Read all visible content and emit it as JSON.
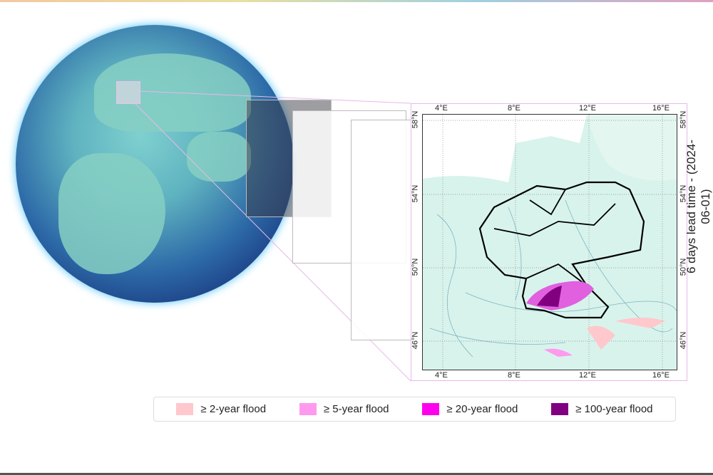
{
  "map": {
    "lon_ticks": [
      "4°E",
      "8°E",
      "12°E",
      "16°E"
    ],
    "lat_ticks": [
      "58°N",
      "54°N",
      "50°N",
      "46°N"
    ],
    "lead_time_label": "6 days lead time - (2024-06-01)"
  },
  "legend": {
    "items": [
      {
        "label": "≥ 2-year flood",
        "color": "#ffc8cc"
      },
      {
        "label": "≥ 5-year flood",
        "color": "#ff99ee"
      },
      {
        "label": "≥ 20-year flood",
        "color": "#ff00ee"
      },
      {
        "label": "≥ 100-year flood",
        "color": "#800080"
      }
    ]
  }
}
